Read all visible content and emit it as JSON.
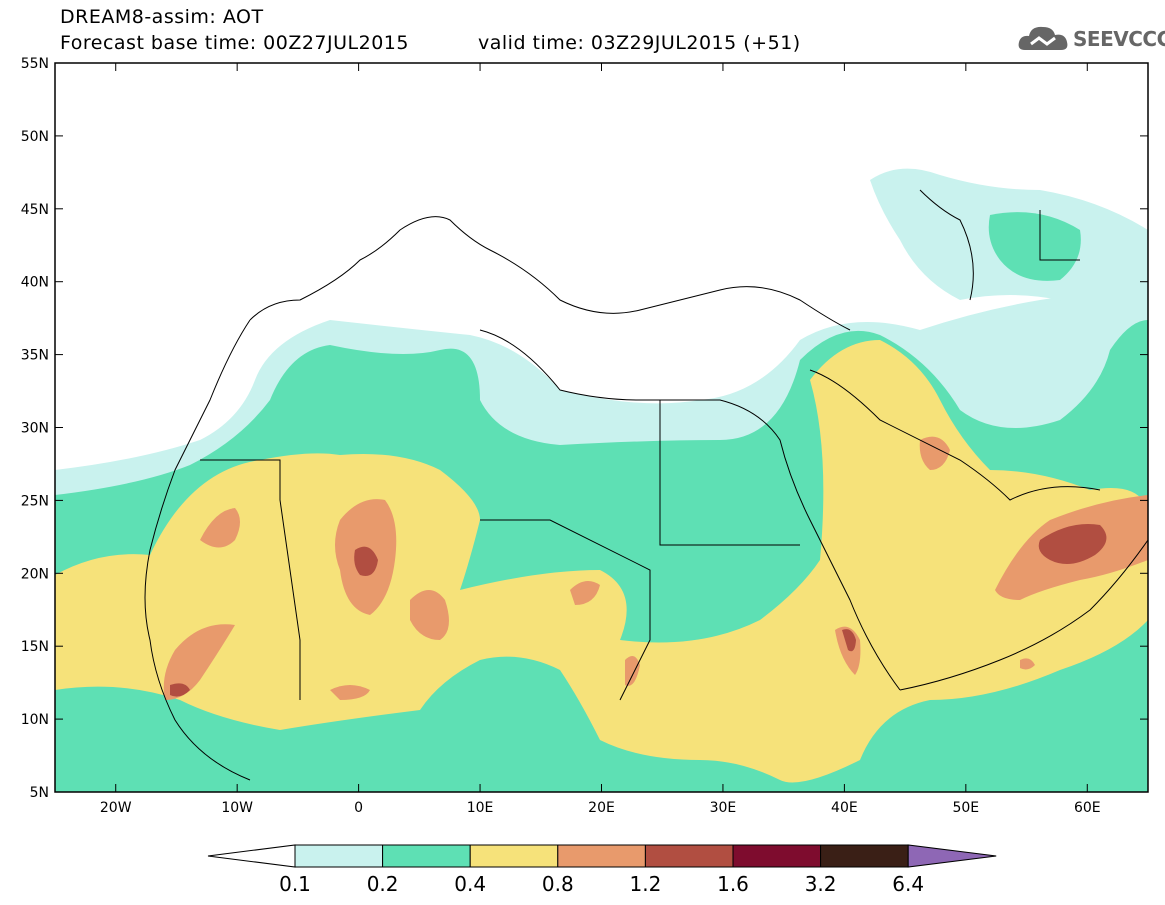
{
  "header": {
    "title_line1": "DREAM8-assim: AOT",
    "title_line2": "Forecast base time: 00Z27JUL2015",
    "valid_time": "valid time: 03Z29JUL2015 (+51)",
    "logo_text": "SEEVCCC"
  },
  "axes": {
    "lon_labels": [
      "20W",
      "10W",
      "0",
      "10E",
      "20E",
      "30E",
      "40E",
      "50E",
      "60E"
    ],
    "lat_labels": [
      "55N",
      "50N",
      "45N",
      "40N",
      "35N",
      "30N",
      "25N",
      "20N",
      "15N",
      "10N",
      "5N"
    ],
    "lon_range": [
      -25,
      65
    ],
    "lat_range": [
      5,
      55
    ]
  },
  "legend": {
    "levels": [
      "0.1",
      "0.2",
      "0.4",
      "0.8",
      "1.2",
      "1.6",
      "3.2",
      "6.4"
    ],
    "colors": [
      "#c9f2ee",
      "#5ee0b4",
      "#f6e27a",
      "#e89a6c",
      "#b14e41",
      "#7e0c2e",
      "#3a1f16",
      "#8e67b5"
    ]
  }
}
